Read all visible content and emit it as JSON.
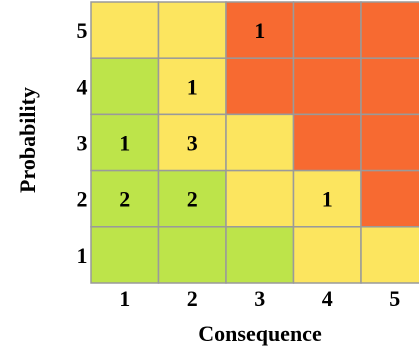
{
  "chart_data": {
    "type": "heatmap",
    "title": "",
    "xlabel": "Consequence",
    "ylabel": "Probability",
    "x_ticks": [
      "1",
      "2",
      "3",
      "4",
      "5"
    ],
    "y_ticks": [
      "5",
      "4",
      "3",
      "2",
      "1"
    ],
    "colors": {
      "green": "#bde44a",
      "yellow": "#fce55f",
      "orange": "#f76a31",
      "grid": "#9a9a9a"
    },
    "cell_colors": [
      [
        "yellow",
        "yellow",
        "orange",
        "orange",
        "orange"
      ],
      [
        "green",
        "yellow",
        "orange",
        "orange",
        "orange"
      ],
      [
        "green",
        "yellow",
        "yellow",
        "orange",
        "orange"
      ],
      [
        "green",
        "green",
        "yellow",
        "yellow",
        "orange"
      ],
      [
        "green",
        "green",
        "green",
        "yellow",
        "yellow"
      ]
    ],
    "counts": [
      [
        "",
        "",
        "1",
        "",
        ""
      ],
      [
        "",
        "1",
        "",
        "",
        ""
      ],
      [
        "1",
        "3",
        "",
        "",
        ""
      ],
      [
        "2",
        "2",
        "",
        "1",
        ""
      ],
      [
        "",
        "",
        "",
        "",
        ""
      ]
    ]
  }
}
